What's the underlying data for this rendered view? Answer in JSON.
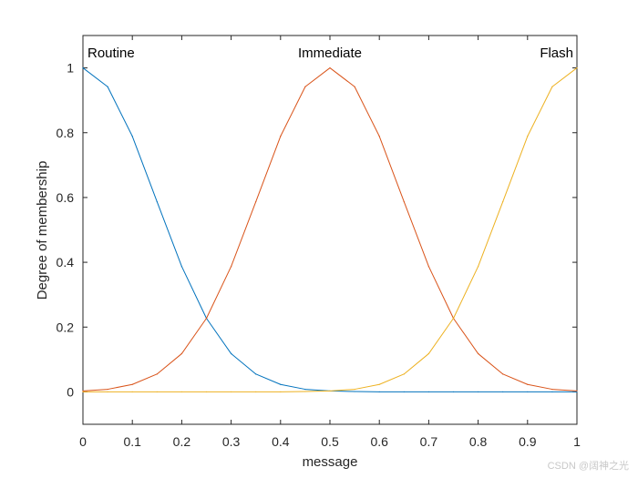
{
  "chart_data": {
    "type": "line",
    "title": "",
    "xlabel": "message",
    "ylabel": "Degree of membership",
    "xlim": [
      0,
      1
    ],
    "ylim": [
      -0.1,
      1.1
    ],
    "grid": false,
    "legend": "none",
    "x_ticks": [
      "0",
      "0.1",
      "0.2",
      "0.3",
      "0.4",
      "0.5",
      "0.6",
      "0.7",
      "0.8",
      "0.9",
      "1"
    ],
    "y_ticks": [
      "0",
      "0.2",
      "0.4",
      "0.6",
      "0.8",
      "1"
    ],
    "x": [
      0,
      0.05,
      0.1,
      0.15,
      0.2,
      0.25,
      0.3,
      0.35,
      0.4,
      0.45,
      0.5,
      0.55,
      0.6,
      0.65,
      0.7,
      0.75,
      0.8,
      0.85,
      0.9,
      0.95,
      1
    ],
    "series": [
      {
        "name": "Routine",
        "color": "#0072BD",
        "values": [
          1.0,
          0.942,
          0.789,
          0.587,
          0.387,
          0.227,
          0.118,
          0.055,
          0.023,
          0.008,
          0.003,
          0.001,
          0.0,
          0.0,
          0.0,
          0.0,
          0.0,
          0.0,
          0.0,
          0.0,
          0.0
        ]
      },
      {
        "name": "Immediate",
        "color": "#D95319",
        "values": [
          0.003,
          0.008,
          0.023,
          0.055,
          0.118,
          0.227,
          0.387,
          0.587,
          0.789,
          0.942,
          1.0,
          0.942,
          0.789,
          0.587,
          0.387,
          0.227,
          0.118,
          0.055,
          0.023,
          0.008,
          0.003
        ]
      },
      {
        "name": "Flash",
        "color": "#EDB120",
        "values": [
          0.0,
          0.0,
          0.0,
          0.0,
          0.0,
          0.0,
          0.0,
          0.0,
          0.0,
          0.001,
          0.003,
          0.008,
          0.023,
          0.055,
          0.118,
          0.227,
          0.387,
          0.587,
          0.789,
          0.942,
          1.0
        ]
      }
    ],
    "annotations": [
      {
        "text": "Routine",
        "x": 0.0
      },
      {
        "text": "Immediate",
        "x": 0.5
      },
      {
        "text": "Flash",
        "x": 1.0
      }
    ]
  },
  "watermark": "CSDN @阔神之光"
}
